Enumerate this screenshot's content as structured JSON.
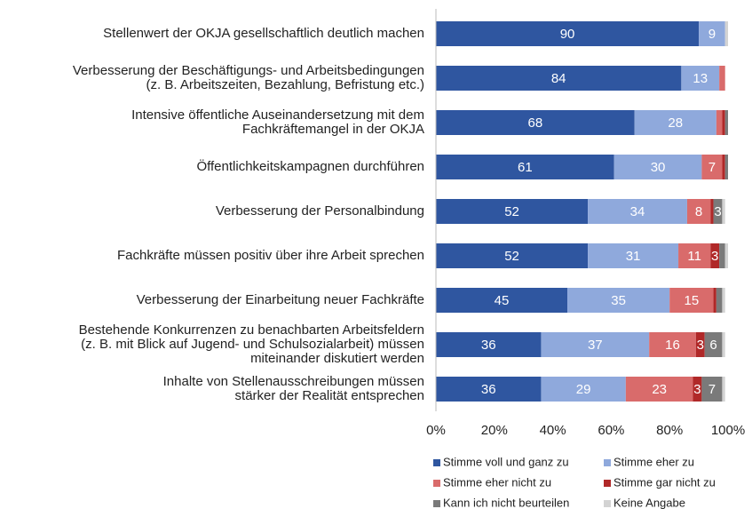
{
  "chart_data": {
    "type": "stacked-bar-horizontal",
    "categories": [
      [
        "Stellenwert der OKJA gesellschaftlich deutlich machen"
      ],
      [
        "Verbesserung der Beschäftigungs- und Arbeitsbedingungen",
        "(z. B. Arbeitszeiten, Bezahlung, Befristung etc.)"
      ],
      [
        "Intensive öffentliche Auseinandersetzung mit dem",
        "Fachkräftemangel in der OKJA"
      ],
      [
        "Öffentlichkeitskampagnen durchführen"
      ],
      [
        "Verbesserung der Personalbindung"
      ],
      [
        "Fachkräfte müssen positiv über ihre Arbeit sprechen"
      ],
      [
        "Verbesserung der Einarbeitung neuer Fachkräfte"
      ],
      [
        "Bestehende Konkurrenzen zu benachbarten Arbeitsfeldern",
        "(z. B. mit Blick auf Jugend- und Schulsozialarbeit) müssen",
        "miteinander diskutiert werden"
      ],
      [
        "Inhalte von Stellenausschreibungen müssen",
        "stärker der Realität entsprechen"
      ]
    ],
    "series": [
      {
        "name": "Stimme voll und ganz zu",
        "color": "#2f56a0",
        "values": [
          90,
          84,
          68,
          61,
          52,
          52,
          45,
          36,
          36
        ]
      },
      {
        "name": "Stimme eher zu",
        "color": "#8fa9dc",
        "values": [
          9,
          13,
          28,
          30,
          34,
          31,
          35,
          37,
          29
        ]
      },
      {
        "name": "Stimme eher nicht zu",
        "color": "#d96b6b",
        "values": [
          0,
          2,
          2,
          7,
          8,
          11,
          15,
          16,
          23
        ]
      },
      {
        "name": "Stimme gar nicht zu",
        "color": "#b02828",
        "values": [
          0,
          0,
          1,
          1,
          1,
          3,
          1,
          3,
          3
        ]
      },
      {
        "name": "Kann ich nicht beurteilen",
        "color": "#7a7a7a",
        "values": [
          0,
          0,
          1,
          1,
          3,
          2,
          2,
          6,
          7
        ]
      },
      {
        "name": "Keine Angabe",
        "color": "#d3d3d3",
        "values": [
          1,
          0,
          0,
          0,
          1,
          1,
          1,
          1,
          1
        ]
      }
    ],
    "xlim": [
      0,
      100
    ],
    "xticks": [
      {
        "value": 0,
        "label": "0%"
      },
      {
        "value": 20,
        "label": "20%"
      },
      {
        "value": 40,
        "label": "40%"
      },
      {
        "value": 60,
        "label": "60%"
      },
      {
        "value": 80,
        "label": "80%"
      },
      {
        "value": 100,
        "label": "100%"
      }
    ],
    "legend": "bottom"
  }
}
